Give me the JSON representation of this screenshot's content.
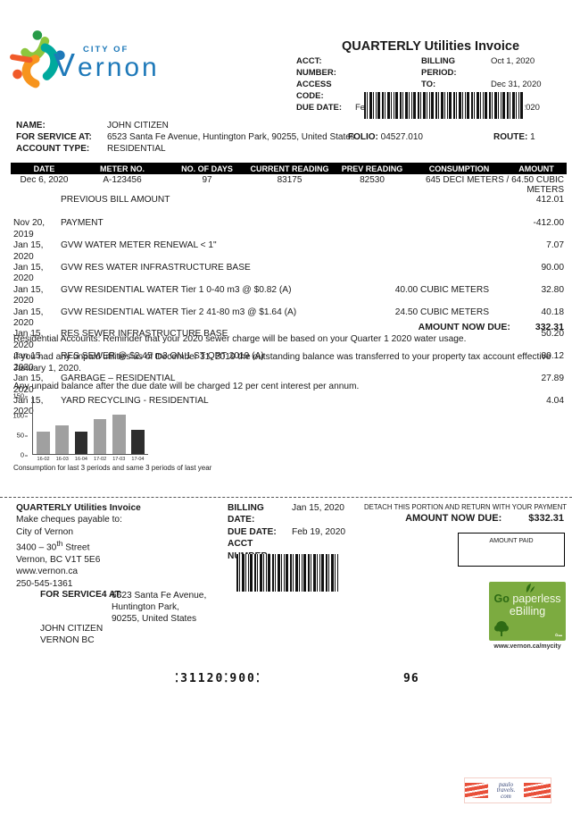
{
  "brand": {
    "city_of": "CITY OF",
    "name": "Vernon",
    "accent_blue": "#1e79b9",
    "logo_green_light": "#8cc63e",
    "logo_green_dark": "#279b48",
    "logo_teal": "#00a99d",
    "logo_orange": "#f7941d",
    "logo_red_orange": "#f15a29"
  },
  "header": {
    "title": "QUARTERLY Utilities Invoice",
    "fields_left": [
      {
        "label": "ACCT: NUMBER:",
        "value": ""
      },
      {
        "label": "ACCESS CODE:",
        "value": ""
      },
      {
        "label": "DUE DATE:",
        "value": "Feb 19, 2020"
      }
    ],
    "fields_right": [
      {
        "label": "BILLING PERIOD:",
        "value": "Oct 1, 2020"
      },
      {
        "label": "TO:",
        "value": "Dec 31, 2020"
      },
      {
        "label": "BILLING DATE:",
        "value": "Jan 15, 2020"
      }
    ]
  },
  "account": {
    "name_label": "NAME:",
    "name": "JOHN CITIZEN",
    "service_label": "FOR SERVICE AT:",
    "service_address": "6523 Santa Fe Avenue, Huntington Park, 90255, United States",
    "folio_label": "FOLIO:",
    "folio": "04527.010",
    "route_label": "ROUTE:",
    "route": "1",
    "type_label": "ACCOUNT TYPE:",
    "type": "RESIDENTIAL"
  },
  "meter_table": {
    "headers": [
      "DATE",
      "METER NO.",
      "NO. OF DAYS",
      "CURRENT READING",
      "PREV READING",
      "CONSUMPTION",
      "AMOUNT"
    ],
    "row": {
      "date": "Dec 6, 2020",
      "meter": "A-123456",
      "days": "97",
      "current": "83175",
      "prev": "82530",
      "consumption": "645 DECI METERS / 64.50 CUBIC METERS"
    }
  },
  "previous_bill": {
    "label": "PREVIOUS BILL AMOUNT",
    "amount": "412.01"
  },
  "line_items": [
    {
      "date": "Nov 20, 2019",
      "desc": "PAYMENT",
      "qty": "",
      "amount": "-412.00"
    },
    {
      "date": "Jan 15, 2020",
      "desc": "GVW WATER METER RENEWAL < 1\"",
      "qty": "",
      "amount": "7.07"
    },
    {
      "date": "Jan 15, 2020",
      "desc": "GVW RES WATER INFRASTRUCTURE BASE",
      "qty": "",
      "amount": "90.00"
    },
    {
      "date": "Jan 15, 2020",
      "desc": "GVW RESIDENTIAL WATER Tier 1  0-40 m3 @ $0.82 (A)",
      "qty": "40.00 CUBIC METERS",
      "amount": "32.80"
    },
    {
      "date": "Jan 15, 2020",
      "desc": "GVW RESIDENTIAL WATER Tier 2 41-80 m3 @ $1.64 (A)",
      "qty": "24.50 CUBIC METERS",
      "amount": "40.18"
    },
    {
      "date": "Jan 15, 2020",
      "desc": "RES SEWER INFRASTRUCTURE BASE",
      "qty": "",
      "amount": "50.20"
    },
    {
      "date": "Jan 15, 2020",
      "desc": "RES SEWER @ $2.45 m3 ON 1 ST QRT 2019 (A)",
      "qty": "",
      "amount": "80.12"
    },
    {
      "date": "Jan 15, 2020",
      "desc": "GARBAGE – RESIDENTIAL",
      "qty": "",
      "amount": "27.89"
    },
    {
      "date": "Jan 15, 2020",
      "desc": "YARD RECYCLING - RESIDENTIAL",
      "qty": "",
      "amount": "4.04"
    }
  ],
  "amount_due": {
    "label": "AMOUNT NOW DUE:",
    "value": "332.31"
  },
  "notes": [
    "Residential Accounts: Reminder that your 2020 sewer charge will be based on your Quarter 1 2020 water usage.",
    "If you had any unpaid utilities as of December 31, 2019 the outstanding balance was transferred to your property tax account effective January 1, 2020.",
    "Any unpaid balance after the due date will be charged 12 per cent interest per annum."
  ],
  "chart_data": {
    "type": "bar",
    "title": "",
    "categories": [
      "16-02",
      "16-03",
      "16-04",
      "17-02",
      "17-03",
      "17-04"
    ],
    "values": [
      58,
      75,
      57,
      90,
      101,
      63
    ],
    "bar_colors": [
      "#a0a0a0",
      "#a0a0a0",
      "#2e2e2e",
      "#a0a0a0",
      "#a0a0a0",
      "#2e2e2e"
    ],
    "ylim": [
      0,
      150
    ],
    "yticks": [
      150,
      100,
      50,
      0
    ],
    "xlabel": "",
    "ylabel": "",
    "grid": false,
    "legend": false,
    "caption": "Consumption for last 3 periods and same 3 periods of last year"
  },
  "stub": {
    "title": "QUARTERLY Utilities Invoice",
    "payable_label": "Make cheques payable to:",
    "payee": "City of Vernon",
    "street_pre": "3400 – 30",
    "street_sup": "th",
    "street_post": " Street",
    "city_line": "Vernon, BC V1T 5E6",
    "website": "www.vernon.ca",
    "phone": "250-545-1361",
    "billing_date_label": "BILLING DATE:",
    "billing_date": "Jan 15, 2020",
    "due_date_label": "DUE DATE:",
    "due_date": "Feb 19, 2020",
    "acct_label": "ACCT NUMBER:",
    "acct_value": "",
    "detach_text": "DETACH THIS PORTION AND RETURN WITH YOUR PAYMENT",
    "amount_due_label": "AMOUNT NOW DUE:",
    "amount_due": "$332.31",
    "amount_paid_label": "AMOUNT PAID"
  },
  "service_stub": {
    "label": "FOR SERVICE4 AT:",
    "address_lines": [
      "6523 Santa Fe Avenue,",
      "Huntington Park,",
      "90255, United States"
    ],
    "name": "JOHN CITIZEN",
    "city": "VERNON BC"
  },
  "ebilling": {
    "go": "Go",
    "paperless": "paperless",
    "ebilling_word": "eBilling",
    "url": "www.vernon.ca/mycity",
    "bg_color": "#7cab40"
  },
  "micr": {
    "code": "⁚31120⁚900⁚",
    "digits": "96"
  },
  "watermark": {
    "line1": "paulo",
    "line2": "travels.",
    "line3": "com"
  }
}
